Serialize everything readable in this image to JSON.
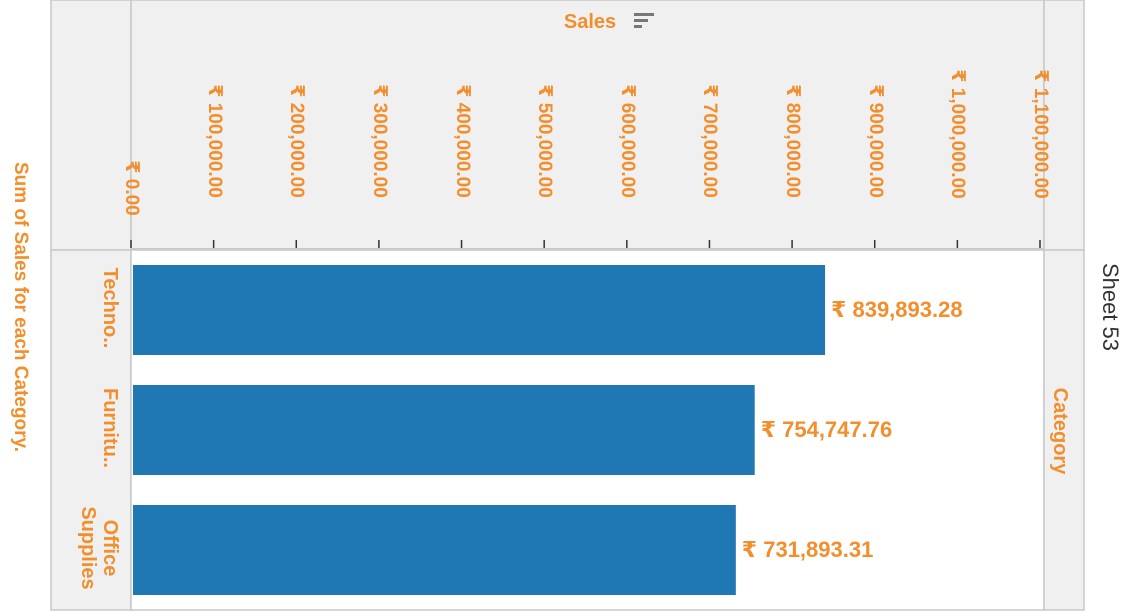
{
  "sheet_title": "Sheet 53",
  "colors": {
    "bar": "#1F77B4",
    "label": "#F28E2B",
    "pane_bg": "#F0F0F0",
    "border": "#C8C8C8"
  },
  "sort_icon": "sort-descending-icon",
  "chart_data": {
    "type": "bar",
    "orientation": "horizontal",
    "title": "Sum of Sales for each Category.",
    "xlabel": "Sales",
    "ylabel": "Category",
    "categories": [
      "Techno..",
      "Furnitu..",
      "Office Supplies"
    ],
    "values": [
      839893.28,
      754747.76,
      731893.31
    ],
    "value_labels": [
      "₹ 839,893.28",
      "₹ 754,747.76",
      "₹ 731,893.31"
    ],
    "xlim": [
      0,
      1100000
    ],
    "x_ticks": [
      0,
      100000,
      200000,
      300000,
      400000,
      500000,
      600000,
      700000,
      800000,
      900000,
      1000000,
      1100000
    ],
    "x_tick_labels": [
      "₹ 0.00",
      "₹ 100,000.00",
      "₹ 200,000.00",
      "₹ 300,000.00",
      "₹ 400,000.00",
      "₹ 500,000.00",
      "₹ 600,000.00",
      "₹ 700,000.00",
      "₹ 800,000.00",
      "₹ 900,000.00",
      "₹ 1,000,000.00",
      "₹ 1,100,000.00"
    ],
    "grid": false,
    "legend": "none"
  }
}
